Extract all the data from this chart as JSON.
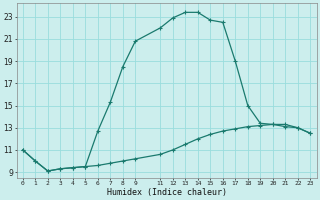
{
  "title": "",
  "xlabel": "Humidex (Indice chaleur)",
  "bg_color": "#cceeed",
  "grid_color": "#99dddd",
  "line_color": "#1a7a6e",
  "xlim": [
    -0.5,
    23.5
  ],
  "ylim": [
    8.5,
    24.2
  ],
  "xtick_positions": [
    0,
    1,
    2,
    3,
    4,
    5,
    6,
    7,
    8,
    9,
    11,
    12,
    13,
    14,
    15,
    16,
    17,
    18,
    19,
    20,
    21,
    22,
    23
  ],
  "xtick_labels": [
    "0",
    "1",
    "2",
    "3",
    "4",
    "5",
    "6",
    "7",
    "8",
    "9",
    "11",
    "12",
    "13",
    "14",
    "15",
    "16",
    "17",
    "18",
    "19",
    "20",
    "21",
    "22",
    "23"
  ],
  "ytick_positions": [
    9,
    11,
    13,
    15,
    17,
    19,
    21,
    23
  ],
  "ytick_labels": [
    "9",
    "11",
    "13",
    "15",
    "17",
    "19",
    "21",
    "23"
  ],
  "curve1_x": [
    0,
    1,
    2,
    3,
    4,
    5,
    6,
    7,
    8,
    9,
    11,
    12,
    13,
    14,
    15,
    16,
    17,
    18,
    19,
    20,
    21,
    22,
    23
  ],
  "curve1_y": [
    11.0,
    10.0,
    9.1,
    9.3,
    9.4,
    9.5,
    9.6,
    9.8,
    10.0,
    10.2,
    10.6,
    11.0,
    11.5,
    12.0,
    12.4,
    12.7,
    12.9,
    13.1,
    13.2,
    13.3,
    13.3,
    13.0,
    12.5
  ],
  "curve2_x": [
    0,
    1,
    2,
    3,
    4,
    5,
    6,
    7,
    8,
    9,
    11,
    12,
    13,
    14,
    15,
    16,
    17,
    18,
    19,
    20,
    21,
    22,
    23
  ],
  "curve2_y": [
    11.0,
    10.0,
    9.1,
    9.3,
    9.4,
    9.5,
    12.7,
    15.3,
    18.5,
    20.8,
    22.0,
    22.9,
    23.4,
    23.4,
    22.7,
    22.5,
    19.0,
    15.0,
    13.4,
    13.3,
    13.1,
    13.0,
    12.5
  ],
  "marker": "+",
  "markersize": 3.5,
  "linewidth": 0.9
}
